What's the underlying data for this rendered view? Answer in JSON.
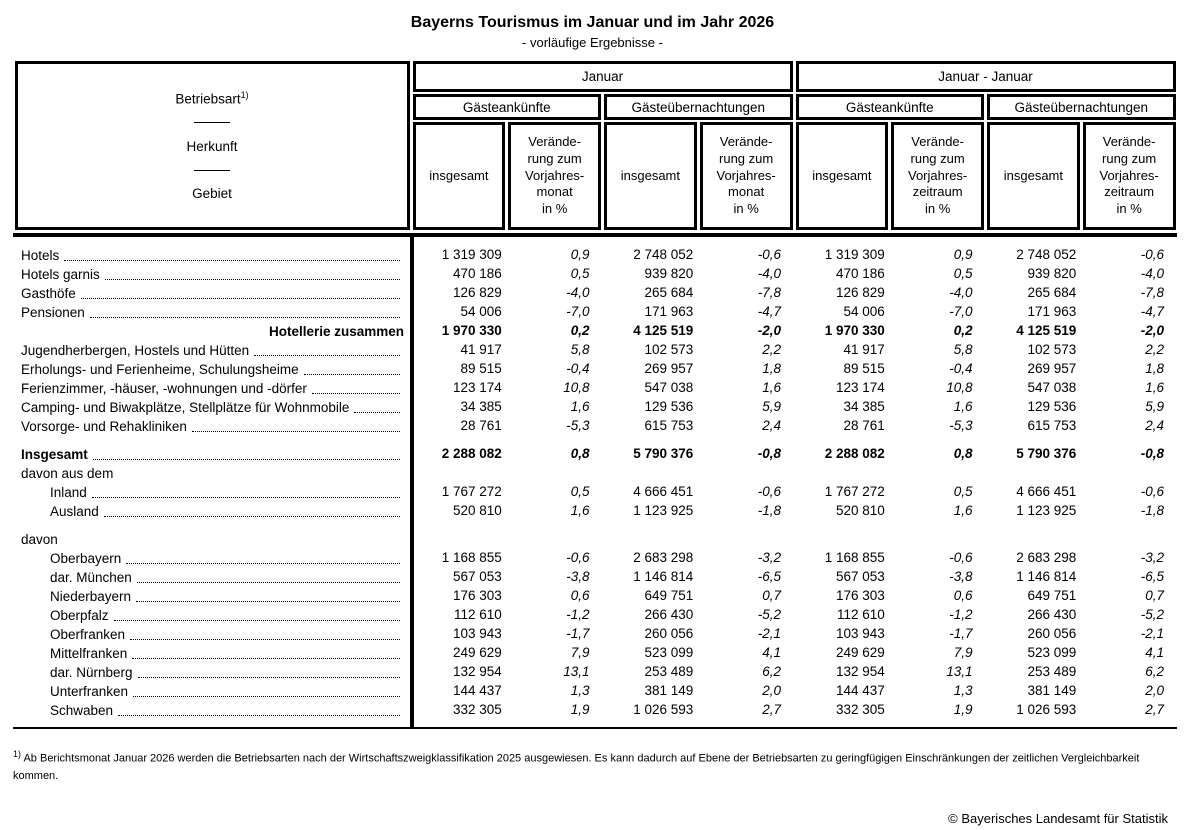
{
  "title": "Bayerns Tourismus im Januar und im Jahr 2026",
  "subtitle": "- vorläufige Ergebnisse -",
  "table": {
    "row_header": {
      "line1": "Betriebsart",
      "footnote_ref": "1)",
      "line2": "Herkunft",
      "line3": "Gebiet"
    },
    "columns": {
      "groups": [
        {
          "label": "Januar",
          "subgroups": [
            {
              "label": "Gästeankünfte",
              "cols": [
                "insgesamt",
                "Verände-\nrung zum\nVorjahres-\nmonat\nin %"
              ]
            },
            {
              "label": "Gästeübernachtungen",
              "cols": [
                "insgesamt",
                "Verände-\nrung zum\nVorjahres-\nmonat\nin %"
              ]
            }
          ]
        },
        {
          "label": "Januar - Januar",
          "subgroups": [
            {
              "label": "Gästeankünfte",
              "cols": [
                "insgesamt",
                "Verände-\nrung zum\nVorjahres-\nzeitraum\nin %"
              ]
            },
            {
              "label": "Gästeübernachtungen",
              "cols": [
                "insgesamt",
                "Verände-\nrung zum\nVorjahres-\nzeitraum\nin %"
              ]
            }
          ]
        }
      ]
    },
    "rows": [
      {
        "label": "Hotels",
        "type": "data",
        "indent": 0,
        "dots": true,
        "values": [
          "1 319 309",
          "0,9",
          "2 748 052",
          "-0,6",
          "1 319 309",
          "0,9",
          "2 748 052",
          "-0,6"
        ]
      },
      {
        "label": "Hotels garnis",
        "type": "data",
        "indent": 0,
        "dots": true,
        "values": [
          "470 186",
          "0,5",
          "939 820",
          "-4,0",
          "470 186",
          "0,5",
          "939 820",
          "-4,0"
        ]
      },
      {
        "label": "Gasthöfe",
        "type": "data",
        "indent": 0,
        "dots": true,
        "values": [
          "126 829",
          "-4,0",
          "265 684",
          "-7,8",
          "126 829",
          "-4,0",
          "265 684",
          "-7,8"
        ]
      },
      {
        "label": "Pensionen",
        "type": "data",
        "indent": 0,
        "dots": true,
        "values": [
          "54 006",
          "-7,0",
          "171 963",
          "-4,7",
          "54 006",
          "-7,0",
          "171 963",
          "-4,7"
        ]
      },
      {
        "label": "Hotellerie zusammen",
        "type": "sum",
        "indent": 0,
        "dots": false,
        "bold": true,
        "values": [
          "1 970 330",
          "0,2",
          "4 125 519",
          "-2,0",
          "1 970 330",
          "0,2",
          "4 125 519",
          "-2,0"
        ]
      },
      {
        "label": "Jugendherbergen, Hostels und Hütten",
        "type": "data",
        "indent": 0,
        "dots": true,
        "values": [
          "41 917",
          "5,8",
          "102 573",
          "2,2",
          "41 917",
          "5,8",
          "102 573",
          "2,2"
        ]
      },
      {
        "label": "Erholungs- und Ferienheime, Schulungsheime",
        "type": "data",
        "indent": 0,
        "dots": true,
        "values": [
          "89 515",
          "-0,4",
          "269 957",
          "1,8",
          "89 515",
          "-0,4",
          "269 957",
          "1,8"
        ]
      },
      {
        "label": "Ferienzimmer, -häuser, -wohnungen und -dörfer",
        "type": "data",
        "indent": 0,
        "dots": true,
        "values": [
          "123 174",
          "10,8",
          "547 038",
          "1,6",
          "123 174",
          "10,8",
          "547 038",
          "1,6"
        ]
      },
      {
        "label": "Camping- und Biwakplätze, Stellplätze für Wohnmobile",
        "type": "data",
        "indent": 0,
        "dots": true,
        "values": [
          "34 385",
          "1,6",
          "129 536",
          "5,9",
          "34 385",
          "1,6",
          "129 536",
          "5,9"
        ]
      },
      {
        "label": "Vorsorge- und Rehakliniken",
        "type": "data",
        "indent": 0,
        "dots": true,
        "values": [
          "28 761",
          "-5,3",
          "615 753",
          "2,4",
          "28 761",
          "-5,3",
          "615 753",
          "2,4"
        ]
      },
      {
        "label": "Insgesamt",
        "type": "total",
        "indent": 0,
        "dots": true,
        "bold": true,
        "gap_before": true,
        "values": [
          "2 288 082",
          "0,8",
          "5 790 376",
          "-0,8",
          "2 288 082",
          "0,8",
          "5 790 376",
          "-0,8"
        ]
      },
      {
        "label": "davon aus dem",
        "type": "group",
        "indent": 0,
        "dots": false
      },
      {
        "label": "Inland",
        "type": "data",
        "indent": 1,
        "dots": true,
        "values": [
          "1 767 272",
          "0,5",
          "4 666 451",
          "-0,6",
          "1 767 272",
          "0,5",
          "4 666 451",
          "-0,6"
        ]
      },
      {
        "label": "Ausland",
        "type": "data",
        "indent": 1,
        "dots": true,
        "values": [
          "520 810",
          "1,6",
          "1 123 925",
          "-1,8",
          "520 810",
          "1,6",
          "1 123 925",
          "-1,8"
        ]
      },
      {
        "label": "davon",
        "type": "group",
        "indent": 0,
        "dots": false,
        "gap_before": true
      },
      {
        "label": "Oberbayern",
        "type": "data",
        "indent": 1,
        "dots": true,
        "values": [
          "1 168 855",
          "-0,6",
          "2 683 298",
          "-3,2",
          "1 168 855",
          "-0,6",
          "2 683 298",
          "-3,2"
        ]
      },
      {
        "label": "dar. München",
        "type": "data",
        "indent": 1,
        "dots": true,
        "values": [
          "567 053",
          "-3,8",
          "1 146 814",
          "-6,5",
          "567 053",
          "-3,8",
          "1 146 814",
          "-6,5"
        ]
      },
      {
        "label": "Niederbayern",
        "type": "data",
        "indent": 1,
        "dots": true,
        "values": [
          "176 303",
          "0,6",
          "649 751",
          "0,7",
          "176 303",
          "0,6",
          "649 751",
          "0,7"
        ]
      },
      {
        "label": "Oberpfalz",
        "type": "data",
        "indent": 1,
        "dots": true,
        "values": [
          "112 610",
          "-1,2",
          "266 430",
          "-5,2",
          "112 610",
          "-1,2",
          "266 430",
          "-5,2"
        ]
      },
      {
        "label": "Oberfranken",
        "type": "data",
        "indent": 1,
        "dots": true,
        "values": [
          "103 943",
          "-1,7",
          "260 056",
          "-2,1",
          "103 943",
          "-1,7",
          "260 056",
          "-2,1"
        ]
      },
      {
        "label": "Mittelfranken",
        "type": "data",
        "indent": 1,
        "dots": true,
        "values": [
          "249 629",
          "7,9",
          "523 099",
          "4,1",
          "249 629",
          "7,9",
          "523 099",
          "4,1"
        ]
      },
      {
        "label": "dar. Nürnberg",
        "type": "data",
        "indent": 1,
        "dots": true,
        "values": [
          "132 954",
          "13,1",
          "253 489",
          "6,2",
          "132 954",
          "13,1",
          "253 489",
          "6,2"
        ]
      },
      {
        "label": "Unterfranken",
        "type": "data",
        "indent": 1,
        "dots": true,
        "values": [
          "144 437",
          "1,3",
          "381 149",
          "2,0",
          "144 437",
          "1,3",
          "381 149",
          "2,0"
        ]
      },
      {
        "label": "Schwaben",
        "type": "data",
        "indent": 1,
        "dots": true,
        "values": [
          "332 305",
          "1,9",
          "1 026 593",
          "2,7",
          "332 305",
          "1,9",
          "1 026 593",
          "2,7"
        ]
      }
    ]
  },
  "footnote": {
    "marker": "1)",
    "text": "Ab Berichtsmonat Januar 2026 werden die Betriebsarten nach der Wirtschaftszweigklassifikation 2025 ausgewiesen. Es kann dadurch auf Ebene der Betriebsarten zu geringfügigen Einschränkungen der zeitlichen Vergleichbarkeit kommen."
  },
  "copyright": "© Bayerisches Landesamt für Statistik"
}
